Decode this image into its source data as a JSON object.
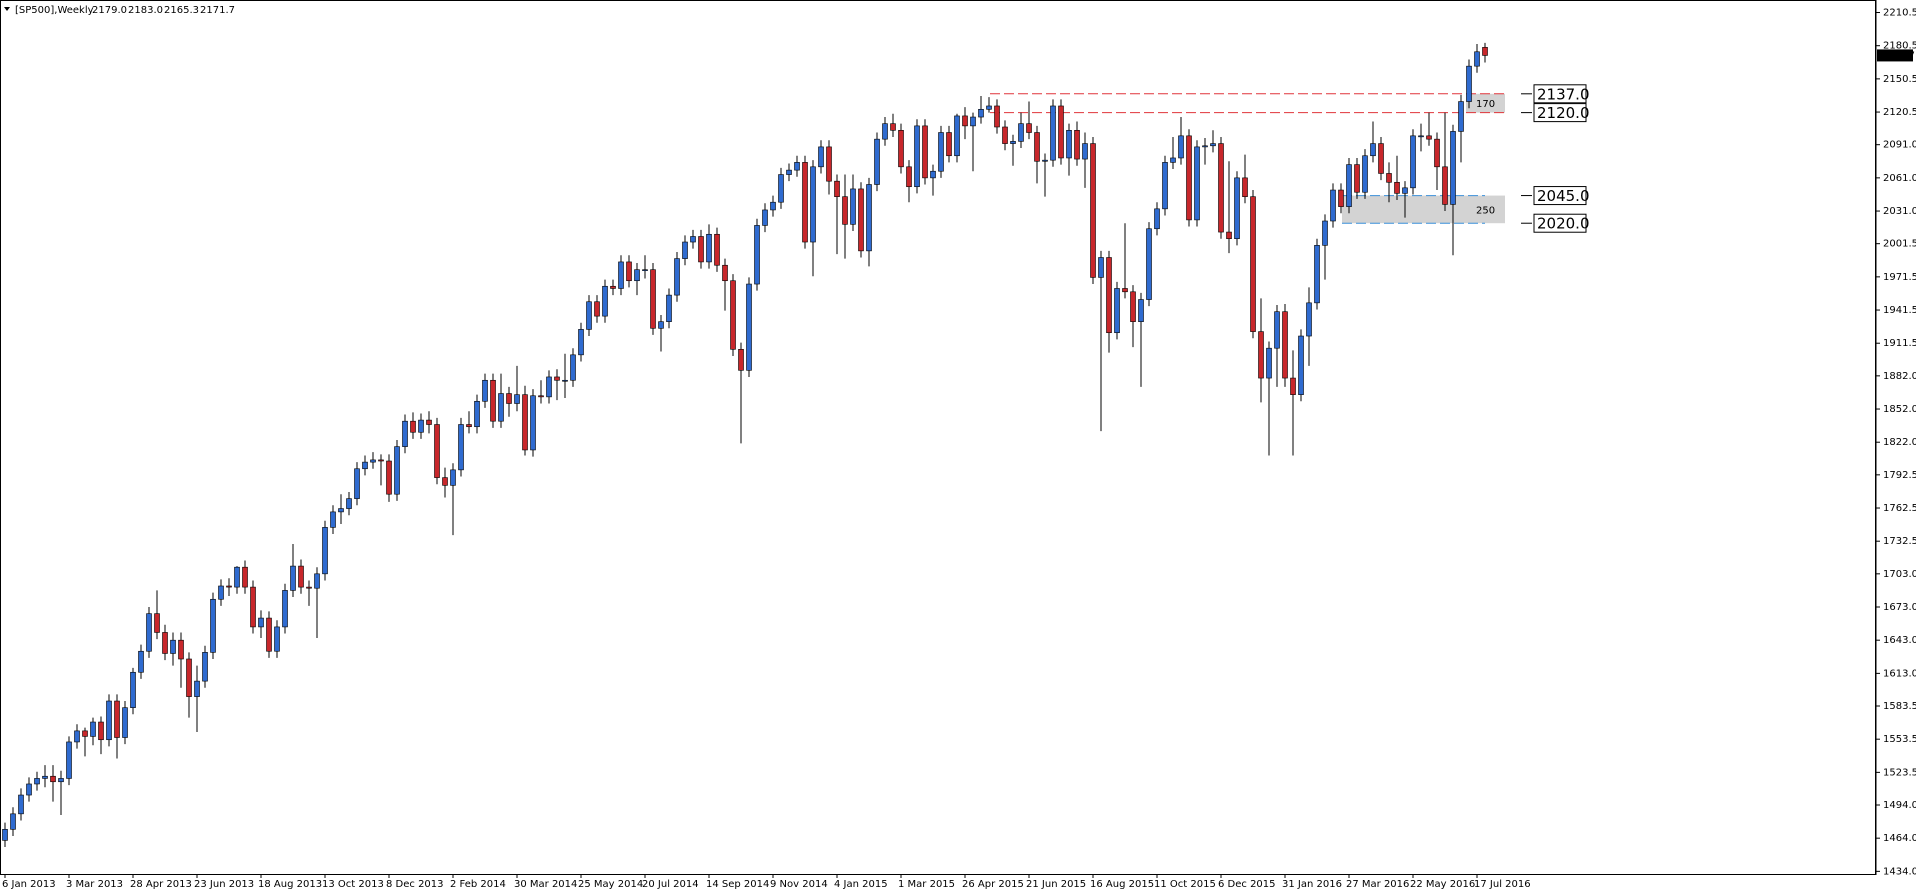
{
  "chart_data": {
    "type": "candlestick",
    "title": "[SP500],Weekly",
    "header_values": [
      "2179.0",
      "2183.0",
      "2165.3",
      "2171.7"
    ],
    "up_color": "#2f6bd0",
    "down_color": "#c8272b",
    "categories": [
      "6 Jan 2013",
      null,
      null,
      null,
      null,
      null,
      null,
      null,
      "3 Mar 2013",
      null,
      null,
      null,
      null,
      null,
      null,
      null,
      "28 Apr 2013",
      null,
      null,
      null,
      null,
      null,
      null,
      null,
      "23 Jun 2013",
      null,
      null,
      null,
      null,
      null,
      null,
      null,
      "18 Aug 2013",
      null,
      null,
      null,
      null,
      null,
      null,
      null,
      "13 Oct 2013",
      null,
      null,
      null,
      null,
      null,
      null,
      null,
      "8 Dec 2013",
      null,
      null,
      null,
      null,
      null,
      null,
      null,
      "2 Feb 2014",
      null,
      null,
      null,
      null,
      null,
      null,
      null,
      "30 Mar 2014",
      null,
      null,
      null,
      null,
      null,
      null,
      null,
      "25 May 2014",
      null,
      null,
      null,
      null,
      null,
      null,
      null,
      "20 Jul 2014",
      null,
      null,
      null,
      null,
      null,
      null,
      null,
      "14 Sep 2014",
      null,
      null,
      null,
      null,
      null,
      null,
      null,
      "9 Nov 2014",
      null,
      null,
      null,
      null,
      null,
      null,
      null,
      "4 Jan 2015",
      null,
      null,
      null,
      null,
      null,
      null,
      null,
      "1 Mar 2015",
      null,
      null,
      null,
      null,
      null,
      null,
      null,
      "26 Apr 2015",
      null,
      null,
      null,
      null,
      null,
      null,
      null,
      "21 Jun 2015",
      null,
      null,
      null,
      null,
      null,
      null,
      null,
      "16 Aug 2015",
      null,
      null,
      null,
      null,
      null,
      null,
      null,
      "11 Oct 2015",
      null,
      null,
      null,
      null,
      null,
      null,
      null,
      "6 Dec 2015",
      null,
      null,
      null,
      null,
      null,
      null,
      null,
      "31 Jan 2016",
      null,
      null,
      null,
      null,
      null,
      null,
      null,
      "27 Mar 2016",
      null,
      null,
      null,
      null,
      null,
      null,
      null,
      "22 May 2016",
      null,
      null,
      null,
      null,
      null,
      null,
      null,
      "17 Jul 2016",
      null
    ],
    "open": [
      1462,
      1472,
      1486,
      1503,
      1513,
      1518,
      1520,
      1515,
      1518,
      1551,
      1561,
      1556,
      1569,
      1553,
      1588,
      1555,
      1582,
      1614,
      1633,
      1667,
      1650,
      1631,
      1643,
      1626,
      1592,
      1606,
      1632,
      1680,
      1692,
      1691,
      1709,
      1691,
      1655,
      1663,
      1633,
      1655,
      1688,
      1710,
      1691,
      1690,
      1703,
      1745,
      1759,
      1762,
      1771,
      1798,
      1804,
      1806,
      1805,
      1775,
      1818,
      1841,
      1831,
      1842,
      1838,
      1790,
      1783,
      1797,
      1838,
      1836,
      1859,
      1878,
      1841,
      1866,
      1857,
      1865,
      1815,
      1864,
      1863,
      1881,
      1878,
      1878,
      1901,
      1924,
      1949,
      1936,
      1963,
      1961,
      1985,
      1968,
      1978,
      1978,
      1925,
      1931,
      1955,
      1988,
      2003,
      2008,
      1985,
      2010,
      1982,
      1968,
      1906,
      1887,
      1965,
      2018,
      2032,
      2039,
      2064,
      2068,
      2075,
      2003,
      2071,
      2089,
      2058,
      2044,
      2019,
      2051,
      1995,
      2055,
      2096,
      2110,
      2104,
      2071,
      2053,
      2108,
      2061,
      2067,
      2102,
      2081,
      2117,
      2108,
      2116,
      2123,
      2126,
      2107,
      2092,
      2094,
      2110,
      2102,
      2076,
      2077,
      2126,
      2079,
      2104,
      2078,
      2092,
      1971,
      1989,
      1921,
      1961,
      1958,
      1931,
      1951,
      2015,
      2033,
      2075,
      2079,
      2099,
      2023,
      2089,
      2090,
      2092,
      2012,
      2006,
      2061,
      2044,
      1922,
      1880,
      1907,
      1940,
      1880,
      1865,
      1918,
      1948,
      2000,
      2022,
      2050,
      2035,
      2073,
      2048,
      2081,
      2092,
      2065,
      2057,
      2047,
      2052,
      2099,
      2099,
      2096,
      2071,
      2037,
      2103,
      2130,
      2162,
      2179
    ],
    "high": [
      1478,
      1492,
      1509,
      1519,
      1524,
      1530,
      1530,
      1525,
      1556,
      1567,
      1564,
      1573,
      1574,
      1594,
      1594,
      1588,
      1618,
      1639,
      1673,
      1688,
      1657,
      1650,
      1650,
      1632,
      1620,
      1638,
      1686,
      1698,
      1699,
      1710,
      1715,
      1697,
      1670,
      1669,
      1661,
      1694,
      1730,
      1716,
      1697,
      1709,
      1751,
      1765,
      1775,
      1777,
      1804,
      1810,
      1813,
      1811,
      1811,
      1824,
      1847,
      1849,
      1848,
      1850,
      1844,
      1799,
      1803,
      1844,
      1850,
      1865,
      1884,
      1884,
      1884,
      1872,
      1891,
      1873,
      1870,
      1878,
      1887,
      1888,
      1902,
      1907,
      1930,
      1955,
      1955,
      1969,
      1969,
      1991,
      1991,
      1984,
      1991,
      1984,
      1937,
      1961,
      1994,
      2009,
      2014,
      2014,
      2019,
      2016,
      1988,
      1974,
      1912,
      1971,
      2024,
      2038,
      2045,
      2070,
      2074,
      2081,
      2081,
      2077,
      2095,
      2095,
      2064,
      2064,
      2064,
      2057,
      2061,
      2102,
      2116,
      2119,
      2110,
      2077,
      2114,
      2114,
      2073,
      2108,
      2108,
      2119,
      2125,
      2120,
      2135,
      2134,
      2132,
      2113,
      2100,
      2120,
      2130,
      2108,
      2083,
      2132,
      2132,
      2110,
      2112,
      2102,
      2098,
      1995,
      1995,
      1967,
      2020,
      1964,
      1957,
      2021,
      2039,
      2081,
      2098,
      2116,
      2105,
      2095,
      2097,
      2104,
      2098,
      2076,
      2067,
      2082,
      2050,
      1952,
      1913,
      1946,
      1947,
      1905,
      1924,
      1962,
      2006,
      2028,
      2056,
      2056,
      2079,
      2079,
      2087,
      2112,
      2098,
      2075,
      2081,
      2058,
      2105,
      2110,
      2120,
      2102,
      2120,
      2109,
      2136,
      2168,
      2182,
      2183
    ],
    "low": [
      1456,
      1466,
      1480,
      1497,
      1507,
      1510,
      1497,
      1485,
      1512,
      1545,
      1538,
      1548,
      1540,
      1547,
      1536,
      1549,
      1576,
      1608,
      1627,
      1644,
      1625,
      1620,
      1600,
      1573,
      1560,
      1600,
      1626,
      1674,
      1683,
      1685,
      1685,
      1649,
      1645,
      1627,
      1627,
      1649,
      1682,
      1685,
      1674,
      1645,
      1697,
      1739,
      1748,
      1756,
      1765,
      1792,
      1798,
      1783,
      1768,
      1769,
      1812,
      1825,
      1825,
      1830,
      1784,
      1772,
      1738,
      1791,
      1830,
      1830,
      1853,
      1835,
      1835,
      1845,
      1850,
      1810,
      1809,
      1857,
      1857,
      1860,
      1862,
      1872,
      1895,
      1918,
      1930,
      1930,
      1955,
      1955,
      1962,
      1955,
      1970,
      1919,
      1904,
      1925,
      1949,
      1982,
      1997,
      1979,
      1979,
      1976,
      1941,
      1900,
      1821,
      1881,
      1959,
      2012,
      2026,
      2033,
      2058,
      2062,
      1997,
      1972,
      2065,
      2046,
      1992,
      1988,
      2013,
      1989,
      1981,
      2049,
      2090,
      2098,
      2065,
      2039,
      2047,
      2055,
      2045,
      2061,
      2075,
      2075,
      2096,
      2067,
      2110,
      2120,
      2101,
      2086,
      2072,
      2088,
      2096,
      2056,
      2044,
      2071,
      2073,
      2063,
      2072,
      2052,
      1965,
      1832,
      1903,
      1915,
      1952,
      1908,
      1872,
      1945,
      2009,
      2027,
      2069,
      2073,
      2017,
      2017,
      2073,
      2084,
      2006,
      1993,
      2000,
      2038,
      1916,
      1858,
      1810,
      1872,
      1872,
      1810,
      1859,
      1891,
      1942,
      1969,
      2016,
      2029,
      2029,
      2042,
      2042,
      2075,
      2059,
      2039,
      2041,
      2025,
      2046,
      2085,
      2090,
      2050,
      2031,
      1991,
      2075,
      2124,
      2156,
      2165.3
    ],
    "close": [
      1472,
      1486,
      1503,
      1513,
      1518,
      1520,
      1515,
      1518,
      1551,
      1561,
      1556,
      1569,
      1553,
      1588,
      1555,
      1582,
      1614,
      1633,
      1667,
      1650,
      1631,
      1643,
      1626,
      1592,
      1606,
      1632,
      1680,
      1692,
      1691,
      1709,
      1691,
      1655,
      1663,
      1633,
      1655,
      1688,
      1710,
      1691,
      1690,
      1703,
      1745,
      1759,
      1762,
      1771,
      1798,
      1804,
      1806,
      1805,
      1775,
      1818,
      1841,
      1831,
      1842,
      1838,
      1790,
      1783,
      1797,
      1838,
      1836,
      1859,
      1878,
      1841,
      1866,
      1857,
      1865,
      1815,
      1864,
      1863,
      1881,
      1878,
      1878,
      1901,
      1924,
      1949,
      1936,
      1963,
      1961,
      1985,
      1968,
      1978,
      1978,
      1925,
      1931,
      1955,
      1988,
      2003,
      2008,
      1985,
      2010,
      1982,
      1968,
      1906,
      1887,
      1965,
      2018,
      2032,
      2039,
      2064,
      2068,
      2075,
      2003,
      2071,
      2089,
      2058,
      2044,
      2019,
      2051,
      1995,
      2055,
      2096,
      2110,
      2104,
      2071,
      2053,
      2108,
      2061,
      2067,
      2102,
      2081,
      2117,
      2108,
      2116,
      2123,
      2126,
      2107,
      2092,
      2094,
      2110,
      2102,
      2076,
      2077,
      2126,
      2079,
      2104,
      2078,
      2092,
      1971,
      1989,
      1921,
      1961,
      1958,
      1931,
      1951,
      2015,
      2033,
      2075,
      2079,
      2099,
      2023,
      2089,
      2090,
      2092,
      2012,
      2006,
      2061,
      2044,
      1922,
      1880,
      1907,
      1940,
      1880,
      1865,
      1918,
      1948,
      2000,
      2022,
      2050,
      2035,
      2073,
      2048,
      2081,
      2092,
      2065,
      2057,
      2047,
      2052,
      2099,
      2099,
      2096,
      2071,
      2037,
      2103,
      2130,
      2162,
      2175,
      2171.7
    ],
    "ylim": [
      1430.7,
      2218.2
    ],
    "yticks": [
      2210.5,
      2180.5,
      2150.5,
      2120.5,
      {
        "value": 2091,
        "label": "2091.0"
      },
      {
        "value": 2061,
        "label": "2061.0"
      },
      {
        "value": 2031,
        "label": "2031.0"
      },
      2001.5,
      1971.5,
      1941.5,
      1911.5,
      {
        "value": 1882,
        "label": "1882.0"
      },
      {
        "value": 1852,
        "label": "1852.0"
      },
      {
        "value": 1822,
        "label": "1822.0"
      },
      1792.5,
      1762.5,
      1732.5,
      {
        "value": 1703,
        "label": "1703.0"
      },
      {
        "value": 1673,
        "label": "1673.0"
      },
      {
        "value": 1643,
        "label": "1643.0"
      },
      {
        "value": 1613,
        "label": "1613.0"
      },
      1583.5,
      1553.5,
      1523.5,
      {
        "value": 1494,
        "label": "1494.0"
      },
      {
        "value": 1464,
        "label": "1464.0"
      },
      {
        "value": 1434,
        "label": "1434.0"
      }
    ],
    "zones": [
      {
        "label": "170",
        "color": "#e0343a",
        "levels": [
          {
            "value": 2137,
            "label": "2137.0"
          },
          {
            "value": 2120,
            "label": "2120.0"
          }
        ]
      },
      {
        "label": "250",
        "color": "#3a8fd8",
        "levels": [
          {
            "value": 2045,
            "label": "2045.0"
          },
          {
            "value": 2020,
            "label": "2020.0"
          }
        ]
      }
    ]
  }
}
